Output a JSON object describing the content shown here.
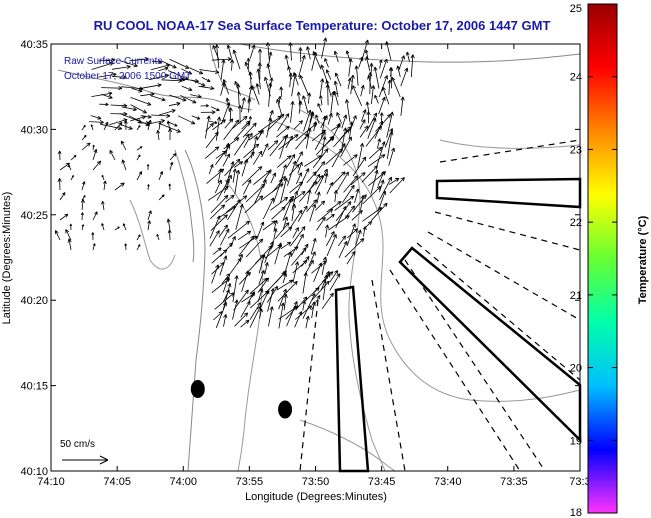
{
  "chart_data": {
    "type": "map-vector-field",
    "title": "RU COOL  NOAA-17  Sea Surface Temperature:  October 17, 2006 1447 GMT",
    "xlabel": "Longitude (Degrees:Minutes)",
    "ylabel": "Latitude (Degrees:Minutes)",
    "x_ticks": [
      "74:10",
      "74:05",
      "74:00",
      "73:55",
      "73:50",
      "73:45",
      "73:40",
      "73:35",
      "73:3"
    ],
    "x_tick_values": [
      -74.1667,
      -74.0833,
      -74.0,
      -73.9167,
      -73.8333,
      -73.75,
      -73.6667,
      -73.5833,
      -73.5
    ],
    "y_ticks": [
      "40:10",
      "40:15",
      "40:20",
      "40:25",
      "40:30",
      "40:35"
    ],
    "y_tick_values": [
      40.1667,
      40.25,
      40.3333,
      40.4167,
      40.5,
      40.5833
    ],
    "xlim": [
      -74.1667,
      -73.5
    ],
    "ylim": [
      40.1667,
      40.5833
    ],
    "inset_text": [
      "Raw Surface Currents",
      "October 17, 2006 1500 GMT"
    ],
    "scale_label": "50 cm/s",
    "colorbar": {
      "label": "Temperature (°C)",
      "ticks": [
        "18",
        "19",
        "20",
        "21",
        "22",
        "23",
        "24",
        "25"
      ],
      "range": [
        18,
        25
      ],
      "colors": [
        "#ff33ff",
        "#0000ff",
        "#00bfff",
        "#00ffaa",
        "#66ff33",
        "#ffff00",
        "#ff8800",
        "#ff0000",
        "#990000"
      ]
    },
    "stations": [
      {
        "lon": -73.9817,
        "lat": 40.2467
      },
      {
        "lon": -73.8717,
        "lat": 40.2267
      }
    ]
  }
}
